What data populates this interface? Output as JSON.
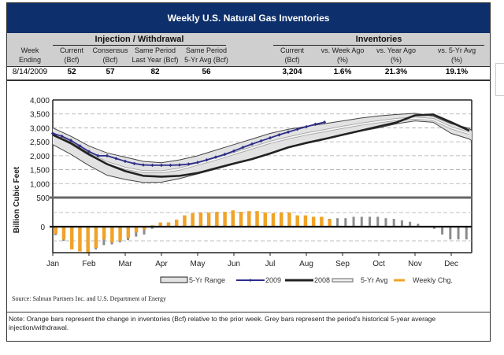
{
  "title": "Weekly U.S. Natural Gas Inventories",
  "table": {
    "groups": [
      {
        "label": "Injection / Withdrawal"
      },
      {
        "label": "Inventories"
      }
    ],
    "columns": [
      {
        "line1": "Week",
        "line2": "Ending"
      },
      {
        "line1": "Current",
        "line2": "(Bcf)"
      },
      {
        "line1": "Consensus",
        "line2": "(Bcf)"
      },
      {
        "line1": "Same Period",
        "line2": "Last Year (Bcf)"
      },
      {
        "line1": "Same Period",
        "line2": "5-Yr Avg (Bcf)"
      },
      {
        "line1": "Current",
        "line2": "(Bcf)"
      },
      {
        "line1": "vs. Week Ago",
        "line2": "(%)"
      },
      {
        "line1": "vs. Year Ago",
        "line2": "(%)"
      },
      {
        "line1": "vs. 5-Yr Avg",
        "line2": "(%)"
      }
    ],
    "row": [
      "8/14/2009",
      "52",
      "57",
      "82",
      "56",
      "3,204",
      "1.6%",
      "21.3%",
      "19.1%"
    ]
  },
  "source": "Source: Salman Partners Inc. and U.S. Department of Energy",
  "note": "Note: Orange bars represent the change in inventories (Bcf) relative to the prior week. Grey bars represent the period's historical 5-year average injection/withdrawal.",
  "colors": {
    "header_bg": "#0d2f6b",
    "orange": "#f0a328",
    "grey": "#8c8c8c",
    "line2009": "#2e2e8a",
    "line2008": "#222222",
    "range_fill": "#e2e2e2"
  },
  "chart_data": {
    "type": "line",
    "ylabel": "Billion Cubic Feet",
    "xlabel": "",
    "title": "",
    "months": [
      "Jan",
      "Feb",
      "Mar",
      "Apr",
      "May",
      "Jun",
      "Jul",
      "Aug",
      "Sep",
      "Oct",
      "Nov",
      "Dec"
    ],
    "top_panel": {
      "ylim": [
        500,
        4000
      ],
      "yticks": [
        "4,000",
        "3,500",
        "3,000",
        "2,500",
        "2,000",
        "1,500",
        "1,000",
        "500"
      ],
      "ytick_values": [
        4000,
        3500,
        3000,
        2500,
        2000,
        1500,
        1000,
        500
      ],
      "grid": "dashed",
      "x_month": [
        0,
        0.5,
        1,
        1.5,
        2,
        2.5,
        3,
        3.5,
        4,
        4.5,
        5,
        5.5,
        6,
        6.5,
        7,
        7.5,
        8,
        8.5,
        9,
        9.5,
        10,
        10.5,
        11,
        11.5
      ],
      "range_high": [
        3000,
        2700,
        2350,
        2100,
        1950,
        1800,
        1750,
        1850,
        2000,
        2200,
        2400,
        2600,
        2800,
        2950,
        3050,
        3150,
        3250,
        3350,
        3430,
        3480,
        3520,
        3420,
        3150,
        2980
      ],
      "range_low": [
        2400,
        2050,
        1650,
        1300,
        1150,
        1040,
        1050,
        1180,
        1350,
        1520,
        1700,
        1900,
        2100,
        2300,
        2480,
        2620,
        2750,
        2880,
        3000,
        3150,
        3250,
        3200,
        2800,
        2600
      ],
      "avg_5yr": [
        2800,
        2450,
        2050,
        1750,
        1550,
        1430,
        1420,
        1520,
        1700,
        1880,
        2080,
        2280,
        2480,
        2640,
        2780,
        2900,
        3020,
        3130,
        3220,
        3300,
        3350,
        3300,
        3000,
        2800
      ],
      "series": [
        {
          "name": "2008",
          "x": [
            0,
            0.5,
            1,
            1.5,
            2,
            2.5,
            3,
            3.5,
            4,
            4.5,
            5,
            5.5,
            6,
            6.5,
            7,
            7.5,
            8,
            8.5,
            9,
            9.5,
            10,
            10.5,
            11,
            11.5
          ],
          "values": [
            2750,
            2450,
            2050,
            1700,
            1450,
            1280,
            1250,
            1280,
            1380,
            1550,
            1720,
            1880,
            2080,
            2300,
            2460,
            2600,
            2750,
            2900,
            3050,
            3200,
            3450,
            3480,
            3200,
            2900
          ]
        },
        {
          "name": "2009",
          "x": [
            0,
            0.25,
            0.5,
            0.75,
            1,
            1.25,
            1.5,
            1.75,
            2,
            2.25,
            2.5,
            2.75,
            3,
            3.25,
            3.5,
            3.75,
            4,
            4.25,
            4.5,
            4.75,
            5,
            5.25,
            5.5,
            5.75,
            6,
            6.25,
            6.5,
            6.75,
            7,
            7.25,
            7.5
          ],
          "values": [
            2800,
            2700,
            2550,
            2350,
            2150,
            2000,
            2000,
            1900,
            1800,
            1720,
            1670,
            1660,
            1660,
            1660,
            1670,
            1700,
            1760,
            1850,
            1950,
            2050,
            2170,
            2300,
            2420,
            2530,
            2640,
            2750,
            2850,
            2950,
            3040,
            3130,
            3204
          ]
        }
      ]
    },
    "bottom_panel": {
      "yticks": [
        "0"
      ],
      "grid": "dashed",
      "weekly_change": [
        -50,
        -90,
        -160,
        -175,
        -190,
        -150,
        -90,
        -110,
        -100,
        -80,
        -40,
        -20,
        10,
        30,
        30,
        50,
        80,
        95,
        100,
        100,
        105,
        105,
        115,
        105,
        110,
        110,
        100,
        95,
        100,
        100,
        80,
        80,
        70,
        70,
        52
      ],
      "five_yr_avg": [
        -60,
        -100,
        -150,
        -160,
        -170,
        -160,
        -130,
        -125,
        -110,
        -95,
        -70,
        -55,
        -15,
        20,
        30,
        40,
        55,
        70,
        80,
        85,
        90,
        95,
        95,
        90,
        95,
        95,
        90,
        85,
        80,
        80,
        75,
        70,
        65,
        60,
        56,
        60,
        60,
        70,
        70,
        70,
        70,
        60,
        55,
        45,
        35,
        20,
        -5,
        -15,
        -55,
        -90,
        -90,
        -90
      ]
    },
    "legend": [
      {
        "label": "5-Yr Range",
        "kind": "range-box"
      },
      {
        "label": "2009",
        "kind": "line-marker"
      },
      {
        "label": "2008",
        "kind": "thick-line"
      },
      {
        "label": "5-Yr Avg",
        "kind": "hollow-box"
      },
      {
        "label": "Weekly Chg.",
        "kind": "orange-dash"
      }
    ],
    "legend_position": "bottom"
  }
}
